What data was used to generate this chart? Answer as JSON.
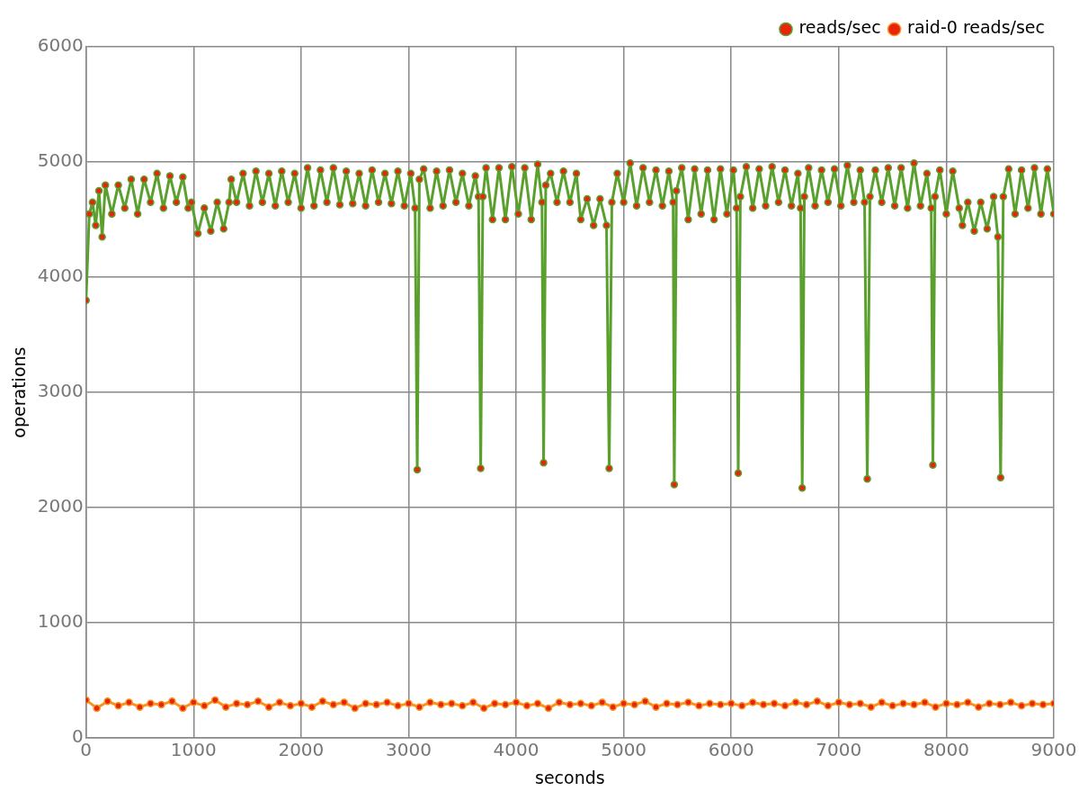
{
  "chart_data": {
    "type": "line",
    "xlabel": "seconds",
    "ylabel": "operations",
    "xlim": [
      0,
      9000
    ],
    "xticks": [
      0,
      1000,
      2000,
      3000,
      4000,
      5000,
      6000,
      7000,
      8000,
      9000
    ],
    "ylim": [
      0,
      6000
    ],
    "yticks": [
      0,
      1000,
      2000,
      3000,
      4000,
      5000,
      6000
    ],
    "grid": true,
    "legend": "top right",
    "marker": "circle",
    "line_style": "solid",
    "series": [
      {
        "name": "reads/sec",
        "color": "#5aa02c",
        "x": [
          0,
          30,
          60,
          90,
          120,
          150,
          180,
          240,
          300,
          360,
          420,
          480,
          540,
          600,
          660,
          720,
          780,
          840,
          900,
          950,
          980,
          1040,
          1100,
          1160,
          1220,
          1280,
          1330,
          1350,
          1400,
          1460,
          1520,
          1580,
          1640,
          1700,
          1760,
          1820,
          1880,
          1940,
          2000,
          2060,
          2120,
          2180,
          2240,
          2300,
          2360,
          2420,
          2480,
          2540,
          2600,
          2660,
          2720,
          2780,
          2840,
          2900,
          2960,
          3020,
          3060,
          3080,
          3100,
          3140,
          3200,
          3260,
          3320,
          3380,
          3440,
          3500,
          3560,
          3620,
          3650,
          3670,
          3690,
          3720,
          3780,
          3840,
          3900,
          3960,
          4020,
          4080,
          4140,
          4200,
          4240,
          4255,
          4275,
          4320,
          4380,
          4440,
          4500,
          4560,
          4600,
          4660,
          4720,
          4780,
          4840,
          4865,
          4890,
          4940,
          5000,
          5060,
          5120,
          5180,
          5240,
          5300,
          5360,
          5420,
          5460,
          5470,
          5490,
          5540,
          5600,
          5660,
          5720,
          5780,
          5840,
          5900,
          5960,
          6020,
          6050,
          6065,
          6085,
          6140,
          6200,
          6260,
          6320,
          6380,
          6440,
          6500,
          6560,
          6620,
          6645,
          6660,
          6680,
          6720,
          6780,
          6840,
          6900,
          6960,
          7020,
          7080,
          7140,
          7200,
          7240,
          7265,
          7290,
          7340,
          7400,
          7460,
          7520,
          7580,
          7640,
          7700,
          7760,
          7820,
          7860,
          7875,
          7895,
          7940,
          8000,
          8060,
          8120,
          8150,
          8200,
          8260,
          8320,
          8380,
          8440,
          8480,
          8505,
          8530,
          8580,
          8640,
          8700,
          8760,
          8820,
          8880,
          8940,
          9000
        ],
        "values": [
          3800,
          4550,
          4650,
          4450,
          4750,
          4350,
          4800,
          4550,
          4800,
          4600,
          4850,
          4550,
          4850,
          4650,
          4900,
          4600,
          4880,
          4650,
          4870,
          4600,
          4650,
          4380,
          4600,
          4400,
          4650,
          4420,
          4650,
          4850,
          4650,
          4900,
          4620,
          4920,
          4650,
          4900,
          4620,
          4920,
          4650,
          4900,
          4600,
          4950,
          4620,
          4930,
          4650,
          4950,
          4630,
          4920,
          4640,
          4900,
          4620,
          4930,
          4650,
          4900,
          4640,
          4920,
          4620,
          4900,
          4600,
          2330,
          4850,
          4940,
          4600,
          4920,
          4620,
          4930,
          4650,
          4900,
          4620,
          4880,
          4700,
          2340,
          4700,
          4950,
          4500,
          4950,
          4500,
          4960,
          4550,
          4950,
          4500,
          4980,
          4650,
          2390,
          4800,
          4900,
          4650,
          4920,
          4650,
          4900,
          4500,
          4680,
          4450,
          4680,
          4450,
          2340,
          4650,
          4900,
          4650,
          4990,
          4620,
          4950,
          4650,
          4930,
          4620,
          4920,
          4650,
          2200,
          4750,
          4950,
          4500,
          4940,
          4550,
          4930,
          4500,
          4940,
          4550,
          4930,
          4600,
          2300,
          4700,
          4960,
          4600,
          4940,
          4620,
          4960,
          4650,
          4930,
          4620,
          4900,
          4600,
          2170,
          4700,
          4950,
          4620,
          4930,
          4650,
          4940,
          4620,
          4970,
          4650,
          4930,
          4650,
          2250,
          4700,
          4930,
          4650,
          4950,
          4620,
          4950,
          4600,
          4990,
          4620,
          4900,
          4600,
          2370,
          4700,
          4930,
          4550,
          4920,
          4600,
          4450,
          4650,
          4400,
          4650,
          4420,
          4700,
          4350,
          2260,
          4700,
          4940,
          4550,
          4930,
          4600,
          4950,
          4550,
          4940,
          4550
        ]
      },
      {
        "name": "raid-0 reads/sec",
        "color": "#f7931e",
        "x": [
          0,
          100,
          200,
          300,
          400,
          500,
          600,
          700,
          800,
          900,
          1000,
          1100,
          1200,
          1300,
          1400,
          1500,
          1600,
          1700,
          1800,
          1900,
          2000,
          2100,
          2200,
          2300,
          2400,
          2500,
          2600,
          2700,
          2800,
          2900,
          3000,
          3100,
          3200,
          3300,
          3400,
          3500,
          3600,
          3700,
          3800,
          3900,
          4000,
          4100,
          4200,
          4300,
          4400,
          4500,
          4600,
          4700,
          4800,
          4900,
          5000,
          5100,
          5200,
          5300,
          5400,
          5500,
          5600,
          5700,
          5800,
          5900,
          6000,
          6100,
          6200,
          6300,
          6400,
          6500,
          6600,
          6700,
          6800,
          6900,
          7000,
          7100,
          7200,
          7300,
          7400,
          7500,
          7600,
          7700,
          7800,
          7900,
          8000,
          8100,
          8200,
          8300,
          8400,
          8500,
          8600,
          8700,
          8800,
          8900,
          9000
        ],
        "values": [
          330,
          260,
          320,
          280,
          310,
          270,
          300,
          290,
          320,
          260,
          310,
          280,
          330,
          270,
          300,
          290,
          320,
          270,
          310,
          280,
          300,
          270,
          320,
          290,
          310,
          260,
          300,
          290,
          310,
          280,
          300,
          270,
          310,
          290,
          300,
          280,
          310,
          260,
          300,
          290,
          310,
          280,
          300,
          260,
          310,
          290,
          300,
          280,
          310,
          270,
          300,
          290,
          320,
          270,
          300,
          290,
          310,
          280,
          300,
          290,
          300,
          280,
          310,
          290,
          300,
          280,
          310,
          290,
          320,
          280,
          310,
          290,
          300,
          270,
          310,
          280,
          300,
          290,
          310,
          270,
          300,
          290,
          310,
          270,
          300,
          290,
          310,
          280,
          300,
          290,
          300
        ]
      }
    ]
  }
}
